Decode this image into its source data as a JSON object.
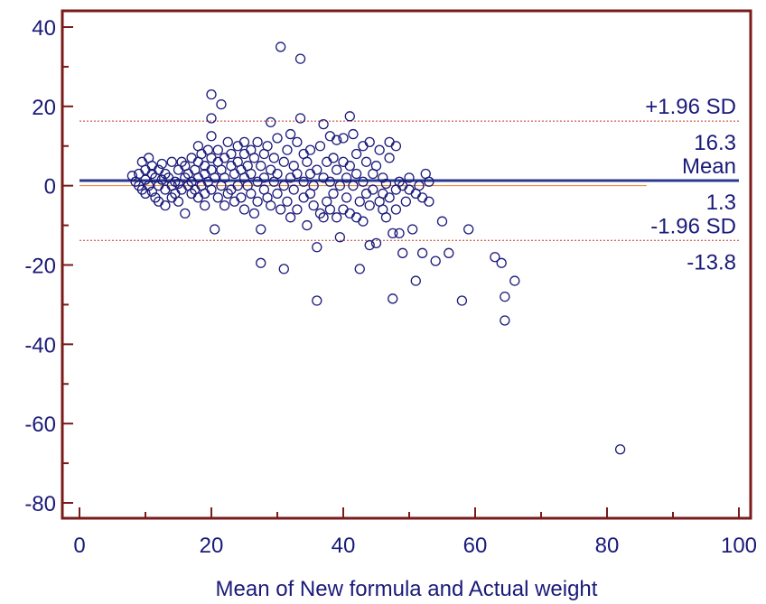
{
  "chart_data": {
    "type": "scatter",
    "title": "",
    "xlabel": "Mean of New formula and Actual weight",
    "ylabel": "",
    "xlim": [
      0,
      100
    ],
    "ylim": [
      -80,
      40
    ],
    "xticks": [
      "0",
      "20",
      "40",
      "60",
      "80",
      "100"
    ],
    "yticks": [
      "40",
      "20",
      "0",
      "-20",
      "-40",
      "-60",
      "-80"
    ],
    "reference_lines": [
      {
        "label": "+1.96 SD",
        "value_label": "16.3",
        "value": 16.3,
        "style": "dashed"
      },
      {
        "label": "Mean",
        "value_label": "1.3",
        "value": 1.3,
        "style": "solid"
      },
      {
        "label": "-1.96 SD",
        "value_label": "-13.8",
        "value": -13.8,
        "style": "dashed"
      }
    ],
    "zero_line": {
      "value": 0,
      "x_end": 86
    },
    "colors": {
      "frame": "#7a1a1a",
      "points": "#1a1a7a",
      "mean_line": "#2b3a8f",
      "sd_line": "#c0392b",
      "zero_line": "#e67e22",
      "text": "#1a1a7a"
    },
    "points": [
      [
        8,
        2.5
      ],
      [
        8.5,
        1
      ],
      [
        9,
        0
      ],
      [
        9,
        3
      ],
      [
        9.5,
        6
      ],
      [
        9.5,
        -1
      ],
      [
        10,
        4
      ],
      [
        10,
        1.5
      ],
      [
        10,
        -2
      ],
      [
        10.5,
        7
      ],
      [
        10.5,
        0
      ],
      [
        11,
        3
      ],
      [
        11,
        -1.5
      ],
      [
        11,
        5
      ],
      [
        11.5,
        2
      ],
      [
        11.5,
        -3
      ],
      [
        12,
        0
      ],
      [
        12,
        4
      ],
      [
        12,
        -4
      ],
      [
        12.5,
        1.5
      ],
      [
        12.5,
        5.5
      ],
      [
        13,
        -1
      ],
      [
        13,
        3
      ],
      [
        13,
        -5
      ],
      [
        13.5,
        2
      ],
      [
        14,
        0
      ],
      [
        14,
        6
      ],
      [
        14,
        -3
      ],
      [
        14.5,
        1
      ],
      [
        14.5,
        -2
      ],
      [
        15,
        4
      ],
      [
        15,
        0.5
      ],
      [
        15,
        -4
      ],
      [
        15.5,
        6
      ],
      [
        15.5,
        -1
      ],
      [
        16,
        2
      ],
      [
        16,
        -7
      ],
      [
        16,
        5
      ],
      [
        16.5,
        0
      ],
      [
        16.5,
        3
      ],
      [
        17,
        -2
      ],
      [
        17,
        7
      ],
      [
        17,
        1
      ],
      [
        17.5,
        4
      ],
      [
        17.5,
        -1
      ],
      [
        18,
        10
      ],
      [
        18,
        2
      ],
      [
        18,
        -3
      ],
      [
        18,
        6
      ],
      [
        18.5,
        0
      ],
      [
        18.5,
        8
      ],
      [
        19,
        3
      ],
      [
        19,
        -2
      ],
      [
        19,
        5
      ],
      [
        19,
        -5
      ],
      [
        19.5,
        9
      ],
      [
        19.5,
        1
      ],
      [
        20,
        12.5
      ],
      [
        20,
        4
      ],
      [
        20,
        -1
      ],
      [
        20,
        7
      ],
      [
        20,
        23
      ],
      [
        20,
        17
      ],
      [
        20.5,
        -11
      ],
      [
        20.5,
        2
      ],
      [
        21,
        6
      ],
      [
        21,
        -3
      ],
      [
        21,
        9
      ],
      [
        21.5,
        20.5
      ],
      [
        21.5,
        0
      ],
      [
        21.5,
        4
      ],
      [
        22,
        -5
      ],
      [
        22,
        7
      ],
      [
        22,
        2
      ],
      [
        22.5,
        11
      ],
      [
        22.5,
        -2
      ],
      [
        23,
        5
      ],
      [
        23,
        -1
      ],
      [
        23,
        8
      ],
      [
        23.5,
        3
      ],
      [
        23.5,
        -4
      ],
      [
        24,
        10
      ],
      [
        24,
        0
      ],
      [
        24,
        6
      ],
      [
        24.5,
        -3
      ],
      [
        24.5,
        4
      ],
      [
        25,
        11
      ],
      [
        25,
        2
      ],
      [
        25,
        -6
      ],
      [
        25,
        8
      ],
      [
        25.5,
        0
      ],
      [
        25.5,
        5
      ],
      [
        26,
        -2
      ],
      [
        26,
        9
      ],
      [
        26,
        3
      ],
      [
        26.5,
        -7
      ],
      [
        26.5,
        7
      ],
      [
        27,
        1
      ],
      [
        27,
        11
      ],
      [
        27,
        -4
      ],
      [
        27.5,
        5
      ],
      [
        27.5,
        -11
      ],
      [
        27.5,
        -19.5
      ],
      [
        28,
        2
      ],
      [
        28,
        8
      ],
      [
        28,
        -1
      ],
      [
        28.5,
        10
      ],
      [
        28.5,
        -3
      ],
      [
        29,
        4
      ],
      [
        29,
        16
      ],
      [
        29,
        -5
      ],
      [
        29.5,
        1
      ],
      [
        29.5,
        7
      ],
      [
        30,
        -2
      ],
      [
        30,
        12
      ],
      [
        30,
        3
      ],
      [
        30.5,
        35
      ],
      [
        30.5,
        -6
      ],
      [
        31,
        6
      ],
      [
        31,
        -21
      ],
      [
        31,
        0
      ],
      [
        31.5,
        9
      ],
      [
        31.5,
        -4
      ],
      [
        32,
        13
      ],
      [
        32,
        2
      ],
      [
        32,
        -8
      ],
      [
        32.5,
        5
      ],
      [
        32.5,
        -1
      ],
      [
        33,
        11
      ],
      [
        33,
        -6
      ],
      [
        33,
        3
      ],
      [
        33.5,
        32
      ],
      [
        33.5,
        17
      ],
      [
        34,
        8
      ],
      [
        34,
        -3
      ],
      [
        34,
        1
      ],
      [
        34.5,
        -10
      ],
      [
        34.5,
        6
      ],
      [
        35,
        3
      ],
      [
        35,
        -2
      ],
      [
        35,
        9
      ],
      [
        35.5,
        -5
      ],
      [
        35.5,
        0
      ],
      [
        36,
        -15.5
      ],
      [
        36,
        4
      ],
      [
        36,
        -29
      ],
      [
        36.5,
        10
      ],
      [
        36.5,
        -7
      ],
      [
        37,
        15.5
      ],
      [
        37,
        2
      ],
      [
        37,
        -8
      ],
      [
        37.5,
        6
      ],
      [
        37.5,
        -4
      ],
      [
        38,
        12.5
      ],
      [
        38,
        1
      ],
      [
        38,
        -6
      ],
      [
        38.5,
        7
      ],
      [
        38.5,
        -2
      ],
      [
        39,
        -8
      ],
      [
        39,
        4
      ],
      [
        39,
        11.5
      ],
      [
        39.5,
        -13
      ],
      [
        39.5,
        0
      ],
      [
        40,
        6
      ],
      [
        40,
        -6
      ],
      [
        40,
        12
      ],
      [
        40.5,
        2
      ],
      [
        40.5,
        -3
      ],
      [
        41,
        17.5
      ],
      [
        41,
        -7
      ],
      [
        41,
        5
      ],
      [
        41.5,
        13
      ],
      [
        41.5,
        0
      ],
      [
        42,
        -8
      ],
      [
        42,
        3
      ],
      [
        42,
        8
      ],
      [
        42.5,
        -4
      ],
      [
        42.5,
        -21
      ],
      [
        43,
        10
      ],
      [
        43,
        1
      ],
      [
        43,
        -9
      ],
      [
        43.5,
        6
      ],
      [
        43.5,
        -2
      ],
      [
        44,
        11
      ],
      [
        44,
        -5
      ],
      [
        44,
        -15
      ],
      [
        44.5,
        3
      ],
      [
        44.5,
        -1
      ],
      [
        45,
        -14.5
      ],
      [
        45,
        5
      ],
      [
        45.5,
        9
      ],
      [
        45.5,
        -4
      ],
      [
        46,
        -6
      ],
      [
        46,
        2
      ],
      [
        46,
        -2
      ],
      [
        46.5,
        -8
      ],
      [
        46.5,
        0.5
      ],
      [
        47,
        11
      ],
      [
        47,
        -3
      ],
      [
        47,
        7
      ],
      [
        47.5,
        -12
      ],
      [
        47.5,
        -28.5
      ],
      [
        48,
        10
      ],
      [
        48,
        -6
      ],
      [
        48,
        -1
      ],
      [
        48.5,
        -12
      ],
      [
        48.5,
        1
      ],
      [
        49,
        -17
      ],
      [
        49,
        0
      ],
      [
        49.5,
        -4
      ],
      [
        50,
        2
      ],
      [
        50,
        -1
      ],
      [
        50.5,
        -11
      ],
      [
        51,
        -24
      ],
      [
        51,
        -2
      ],
      [
        51.5,
        0
      ],
      [
        52,
        -17
      ],
      [
        52,
        -3
      ],
      [
        52.5,
        3
      ],
      [
        53,
        1
      ],
      [
        53,
        -4
      ],
      [
        54,
        -19
      ],
      [
        55,
        -9
      ],
      [
        56,
        -17
      ],
      [
        58,
        -29
      ],
      [
        59,
        -11
      ],
      [
        63,
        -18
      ],
      [
        64,
        -19.5
      ],
      [
        64.5,
        -34
      ],
      [
        64.5,
        -28
      ],
      [
        66,
        -24
      ],
      [
        82,
        -66.5
      ]
    ]
  }
}
